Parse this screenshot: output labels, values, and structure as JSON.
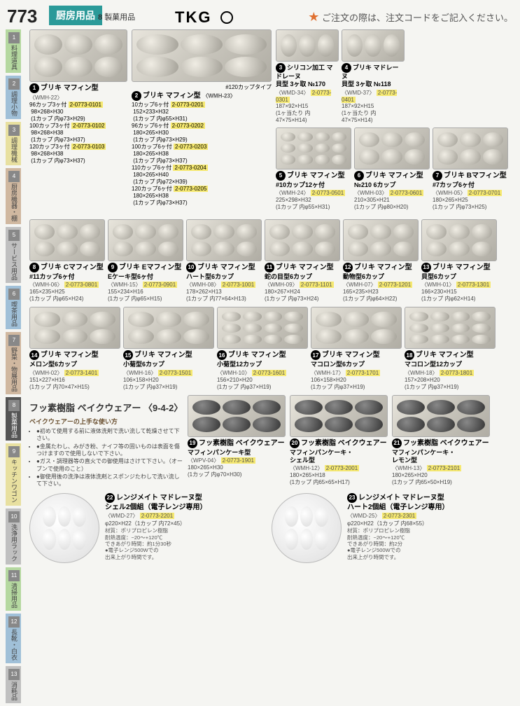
{
  "page_number": "773",
  "category_tab": "厨房用品",
  "subcategory_num": "8",
  "subcategory": "製菓用品",
  "brand": "TKG",
  "notice_star": "★",
  "notice": "ご注文の際は、注文コードをご記入ください。",
  "sidebar": [
    {
      "n": "1",
      "label": "料理道具"
    },
    {
      "n": "2",
      "label": "調理小物"
    },
    {
      "n": "3",
      "label": "調理機械"
    },
    {
      "n": "4",
      "label": "厨房機器・棚"
    },
    {
      "n": "5",
      "label": "サービス用品"
    },
    {
      "n": "6",
      "label": "喫茶用品"
    },
    {
      "n": "7",
      "label": "野菜・物展用品"
    },
    {
      "n": "8",
      "label": "製菓用品"
    },
    {
      "n": "9",
      "label": "キッチンワゴン"
    },
    {
      "n": "10",
      "label": "洗浄用ラック"
    },
    {
      "n": "11",
      "label": "清掃用品"
    },
    {
      "n": "12",
      "label": "長靴・白衣"
    },
    {
      "n": "13",
      "label": "消耗品"
    }
  ],
  "products": {
    "p1": {
      "title": "ブリキ マフィン型",
      "sub": "#",
      "code": "〈WMH-22〉",
      "rows": [
        {
          "a": "96カップ3ヶ付",
          "b": "2-0773-0101",
          "c": "98×268×H30",
          "d": "(1カップ 内φ73×H29)"
        },
        {
          "a": "100カップ3ヶ付",
          "b": "2-0773-0102",
          "c": "98×268×H38",
          "d": "(1カップ 内φ73×H37)"
        },
        {
          "a": "120カップ3ヶ付",
          "b": "2-0773-0103",
          "c": "98×268×H38",
          "d": "(1カップ 内φ73×H37)"
        }
      ]
    },
    "p2": {
      "title": "ブリキ マフィン型",
      "sub": "#",
      "code": "〈WMH-23〉",
      "caption": "#120カップタイプ",
      "rows": [
        {
          "a": "10カップ6ヶ付",
          "b": "2-0773-0201",
          "c": "152×233×H32",
          "d": "(1カップ 内φ55×H31)"
        },
        {
          "a": "96カップ6ヶ付",
          "b": "2-0773-0202",
          "c": "180×265×H30",
          "d": "(1カップ 内φ73×H29)"
        },
        {
          "a": "100カップ6ヶ付",
          "b": "2-0773-0203",
          "c": "180×265×H38",
          "d": "(1カップ 内φ73×H37)"
        },
        {
          "a": "110カップ6ヶ付",
          "b": "2-0773-0204",
          "c": "180×265×H40",
          "d": "(1カップ 内φ72×H39)"
        },
        {
          "a": "120カップ6ヶ付",
          "b": "2-0773-0205",
          "c": "180×265×H38",
          "d": "(1カップ 内φ73×H37)"
        }
      ]
    },
    "p3": {
      "title": "シリコン加工 マドレーヌ",
      "t2": "貝型 3ヶ取 №170",
      "code": "〈WMD-34〉",
      "oc": "2-0773-0301",
      "dim": "187×92×H15",
      "note": "(1ヶ当たり 内47×75×H14)"
    },
    "p4": {
      "title": "ブリキ マドレーヌ",
      "t2": "貝型 3ヶ取 №118",
      "code": "〈WMD-37〉",
      "oc": "2-0773-0401",
      "dim": "187×92×H15",
      "note": "(1ヶ当たり 内47×75×H14)"
    },
    "p5": {
      "title": "ブリキ マフィン型",
      "t2": "#10カップ12ヶ付",
      "code": "〈WMH-24〉",
      "oc": "2-0773-0501",
      "dim": "225×298×H32",
      "note": "(1カップ 内φ55×H31)"
    },
    "p6": {
      "title": "ブリキ マフィン型",
      "t2": "№210 6カップ",
      "code": "〈WMH-03〉",
      "oc": "2-0773-0601",
      "dim": "210×305×H21",
      "note": "(1カップ 内φ80×H20)"
    },
    "p7": {
      "title": "ブリキ Bマフィン型",
      "t2": "#7カップ6ヶ付",
      "code": "〈WMH-05〉",
      "oc": "2-0773-0701",
      "dim": "180×265×H25",
      "note": "(1カップ 内φ73×H25)"
    },
    "p8": {
      "title": "ブリキ Cマフィン型",
      "t2": "#11カップ6ヶ付",
      "code": "〈WMH-06〉",
      "oc": "2-0773-0801",
      "dim": "165×235×H25",
      "note": "(1カップ 内φ65×H24)"
    },
    "p9": {
      "title": "ブリキ Eマフィン型",
      "t2": "Eケーキ型6ヶ付",
      "code": "〈WMH-15〉",
      "oc": "2-0773-0901",
      "dim": "155×234×H16",
      "note": "(1カップ 内φ65×H15)"
    },
    "p10": {
      "title": "ブリキ マフィン型",
      "t2": "ハート型6カップ",
      "code": "〈WMH-08〉",
      "oc": "2-0773-1001",
      "dim": "178×262×H13",
      "note": "(1カップ 内77×64×H13)"
    },
    "p11": {
      "title": "ブリキ マフィン型",
      "t2": "蛇の目型6カップ",
      "code": "〈WMH-09〉",
      "oc": "2-0773-1101",
      "dim": "180×267×H24",
      "note": "(1カップ 内φ73×H24)"
    },
    "p12": {
      "title": "ブリキ マフィン型",
      "t2": "動物型6カップ",
      "code": "〈WMH-07〉",
      "oc": "2-0773-1201",
      "dim": "165×235×H23",
      "note": "(1カップ 内φ64×H22)"
    },
    "p13": {
      "title": "ブリキ マフィン型",
      "t2": "貝型6カップ",
      "code": "〈WMH-01〉",
      "oc": "2-0773-1301",
      "dim": "166×230×H15",
      "note": "(1カップ 内φ62×H14)"
    },
    "p14": {
      "title": "ブリキ マフィン型",
      "t2": "メロン型6カップ",
      "code": "〈WMH-02〉",
      "oc": "2-0773-1401",
      "dim": "151×227×H16",
      "note": "(1カップ 内70×47×H15)"
    },
    "p15": {
      "title": "ブリキ マフィン型",
      "t2": "小菊型6カップ",
      "code": "〈WMH-16〉",
      "oc": "2-0773-1501",
      "dim": "106×158×H20",
      "note": "(1カップ 内φ37×H19)"
    },
    "p16": {
      "title": "ブリキ マフィン型",
      "t2": "小菊型12カップ",
      "code": "〈WMH-10〉",
      "oc": "2-0773-1601",
      "dim": "156×210×H20",
      "note": "(1カップ 内φ37×H19)"
    },
    "p17": {
      "title": "ブリキ マフィン型",
      "t2": "マコロン型6カップ",
      "code": "〈WMH-17〉",
      "oc": "2-0773-1701",
      "dim": "106×158×H20",
      "note": "(1カップ 内φ37×H19)"
    },
    "p18": {
      "title": "ブリキ マフィン型",
      "t2": "マコロン型12カップ",
      "code": "〈WMH-18〉",
      "oc": "2-0773-1801",
      "dim": "157×208×H20",
      "note": "(1カップ 内φ37×H19)"
    },
    "p19": {
      "title": "フッ素樹脂 ベイクウェアー",
      "t2": "マフィンパンケーキ型",
      "code": "〈WPV-04〉",
      "oc": "2-0773-1901",
      "dim": "180×265×H30",
      "note": "(1カップ 内φ70×H30)"
    },
    "p20": {
      "title": "フッ素樹脂 ベイクウェアー",
      "t2": "マフィンパンケーキ・",
      "t3": "シェル型",
      "code": "〈WMH-12〉",
      "oc": "2-0773-2001",
      "dim": "180×265×H18",
      "note": "(1カップ 内65×65×H17)"
    },
    "p21": {
      "title": "フッ素樹脂 ベイクウェアー",
      "t2": "マフィンパンケーキ・",
      "t3": "レモン型",
      "code": "〈WMH-13〉",
      "oc": "2-0773-2101",
      "dim": "180×265×H20",
      "note": "(1カップ 内65×50×H19)"
    },
    "p22": {
      "title": "レンジメイト マドレーヌ型",
      "t2": "シェル2個組（電子レンジ専用）",
      "code": "〈WMD-27〉",
      "oc": "2-0773-2201",
      "dim": "φ220×H22（1カップ 内72×45）",
      "mat": "材質：ポリプロピレン樹脂",
      "heat": "耐熱温度：−20〜+120℃",
      "time": "できあがり時間：約1分30秒",
      "note2": "●電子レンジ500Wでの",
      "note3": "出来上がり時間です。"
    },
    "p23": {
      "title": "レンジメイト マドレーヌ型",
      "t2": "ハート2個組（電子レンジ専用）",
      "code": "〈WMD-25〉",
      "oc": "2-0773-2301",
      "dim": "φ220×H22（1カップ 内68×55）",
      "mat": "材質：ポリプロピレン樹脂",
      "heat": "耐熱温度：−20〜+120℃",
      "time": "できあがり時間：約2分",
      "note2": "●電子レンジ500Wでの",
      "note3": "出来上がり時間です。"
    }
  },
  "bakeware_section": {
    "title": "フッ素樹脂 ベイクウェアー 〈9-4-2〉",
    "sub": "ベイクウェアーの上手な使い方",
    "tips": [
      "初めて使用する前に液体洗剤で洗い流して乾燥させて下さい。",
      "金属たわし、みがき粉、ナイフ等の固いものは表面を傷つけますので使用しないで下さい。",
      "ガス・調理器等の直火での御使用はさけて下さい。（オーブンで使用のこと）",
      "御使用後の洗浄は液体洗剤とスポンジたわしで洗い流して下さい。"
    ]
  }
}
